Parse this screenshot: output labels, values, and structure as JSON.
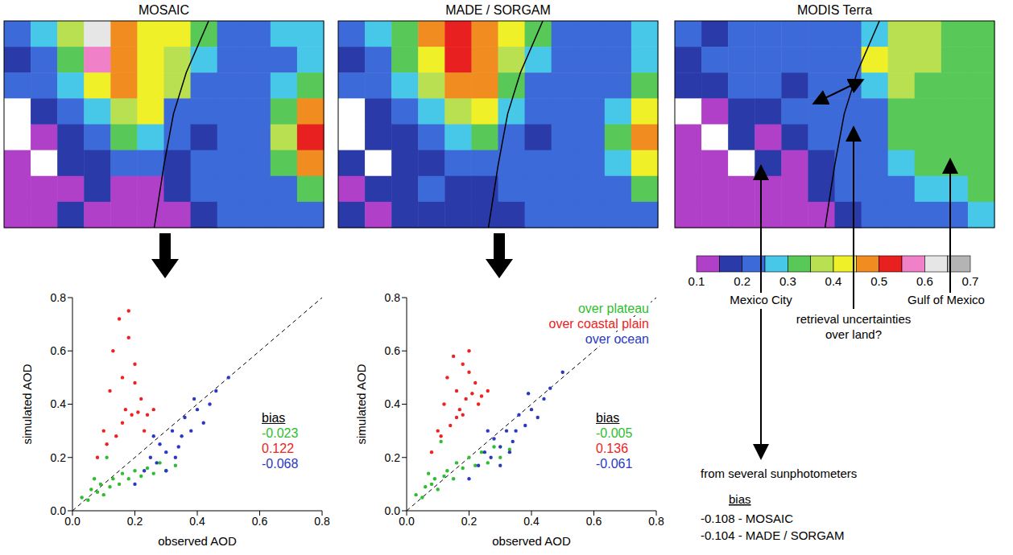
{
  "chart_data": [
    {
      "type": "heatmap",
      "title": "MOSAIC",
      "cells": [
        [
          0.2,
          0.25,
          0.35,
          0.6,
          0.45,
          0.4,
          0.4,
          0.3,
          0.2,
          0.2,
          0.25,
          0.25
        ],
        [
          0.15,
          0.2,
          0.3,
          0.55,
          0.45,
          0.4,
          0.35,
          0.25,
          0.2,
          0.2,
          0.2,
          0.25
        ],
        [
          0.2,
          0.2,
          0.25,
          0.4,
          0.45,
          0.4,
          0.35,
          0.2,
          0.2,
          0.2,
          0.25,
          0.3
        ],
        [
          null,
          0.15,
          0.2,
          0.25,
          0.35,
          0.4,
          0.2,
          0.2,
          0.2,
          0.2,
          0.3,
          0.45
        ],
        [
          null,
          0.1,
          0.15,
          0.2,
          0.3,
          0.25,
          0.2,
          0.15,
          0.2,
          0.2,
          0.35,
          0.5
        ],
        [
          0.1,
          null,
          0.15,
          0.15,
          0.2,
          0.2,
          0.15,
          0.2,
          0.2,
          0.2,
          0.3,
          0.45
        ],
        [
          0.1,
          0.1,
          0.1,
          0.15,
          0.1,
          0.1,
          0.15,
          0.2,
          0.2,
          0.2,
          0.2,
          0.3
        ],
        [
          0.1,
          0.1,
          0.15,
          0.1,
          0.1,
          0.1,
          0.1,
          0.15,
          0.2,
          0.2,
          0.2,
          0.2
        ]
      ]
    },
    {
      "type": "heatmap",
      "title": "MADE / SORGAM",
      "cells": [
        [
          0.2,
          0.25,
          0.3,
          0.45,
          0.5,
          0.45,
          0.4,
          0.3,
          0.2,
          0.2,
          0.2,
          0.25
        ],
        [
          0.15,
          0.2,
          0.3,
          0.4,
          0.5,
          0.45,
          0.35,
          0.25,
          0.2,
          0.2,
          0.2,
          0.25
        ],
        [
          0.2,
          0.2,
          0.25,
          0.35,
          0.45,
          0.45,
          0.3,
          0.2,
          0.2,
          0.2,
          0.2,
          0.3
        ],
        [
          null,
          0.15,
          0.2,
          0.25,
          0.35,
          0.4,
          0.25,
          0.2,
          0.2,
          0.2,
          0.25,
          0.4
        ],
        [
          null,
          0.15,
          0.15,
          0.2,
          0.25,
          0.3,
          0.2,
          0.15,
          0.2,
          0.2,
          0.3,
          0.45
        ],
        [
          0.15,
          null,
          0.15,
          0.15,
          0.2,
          0.2,
          0.2,
          0.2,
          0.2,
          0.2,
          0.25,
          0.4
        ],
        [
          0.1,
          0.15,
          0.15,
          0.2,
          0.15,
          0.15,
          0.2,
          0.2,
          0.2,
          0.2,
          0.2,
          0.3
        ],
        [
          0.15,
          0.1,
          0.15,
          0.15,
          0.15,
          0.15,
          0.15,
          0.2,
          0.2,
          0.2,
          0.2,
          0.2
        ]
      ]
    },
    {
      "type": "heatmap",
      "title": "MODIS Terra",
      "cells": [
        [
          0.2,
          0.15,
          0.2,
          0.2,
          0.2,
          0.2,
          0.2,
          0.25,
          0.35,
          0.35,
          0.3,
          0.3
        ],
        [
          0.15,
          0.2,
          0.2,
          0.2,
          0.2,
          0.2,
          0.2,
          0.4,
          0.35,
          0.35,
          0.3,
          0.3
        ],
        [
          0.15,
          0.15,
          0.2,
          0.2,
          0.15,
          0.2,
          0.2,
          0.25,
          0.35,
          0.3,
          0.3,
          0.3
        ],
        [
          null,
          0.1,
          0.15,
          0.15,
          0.2,
          0.2,
          0.2,
          0.2,
          0.3,
          0.3,
          0.3,
          0.3
        ],
        [
          0.1,
          null,
          0.15,
          0.1,
          0.15,
          0.2,
          0.2,
          0.2,
          0.3,
          0.3,
          0.3,
          0.3
        ],
        [
          0.1,
          0.1,
          null,
          0.15,
          0.1,
          0.15,
          0.2,
          0.2,
          0.25,
          0.3,
          0.3,
          0.3
        ],
        [
          0.1,
          0.1,
          0.1,
          0.1,
          0.1,
          0.15,
          0.2,
          0.2,
          0.2,
          0.25,
          0.25,
          0.3
        ],
        [
          0.1,
          0.1,
          0.1,
          0.1,
          0.1,
          0.1,
          0.15,
          0.2,
          0.2,
          0.2,
          0.2,
          0.25
        ]
      ],
      "colorbar": {
        "range": [
          0.1,
          0.7
        ],
        "ticks": [
          0.1,
          0.2,
          0.3,
          0.4,
          0.5,
          0.6,
          0.7
        ],
        "colors": [
          "#b040c8",
          "#2a3aa8",
          "#3c6ad8",
          "#48c8e8",
          "#58c858",
          "#b8e050",
          "#f0f028",
          "#f08c20",
          "#e82020",
          "#f080c8",
          "#e6e6e6",
          "#b4b4b4"
        ]
      },
      "annotations": [
        "Mexico City",
        "retrieval uncertainties over land?",
        "Gulf of Mexico"
      ],
      "sunphotometer": {
        "text": "from several sunphotometers",
        "bias_label": "bias",
        "lines": [
          "-0.108 - MOSAIC",
          "-0.104 - MADE / SORGAM"
        ]
      }
    },
    {
      "type": "scatter",
      "x_label": "observed AOD",
      "y_label": "simulated AOD",
      "xlim": [
        0,
        0.8
      ],
      "ylim": [
        0,
        0.8
      ],
      "xticks": [
        {
          "value": 0,
          "label": "0.0"
        },
        0.2,
        0.4,
        0.6,
        0.8
      ],
      "yticks": [
        {
          "value": 0,
          "label": "0.0"
        },
        0.2,
        0.4,
        0.6,
        0.8
      ],
      "bias_label": "bias",
      "series": [
        {
          "color": "#2ebd2e",
          "bias": -0.023,
          "x": [
            0.03,
            0.05,
            0.06,
            0.08,
            0.09,
            0.1,
            0.12,
            0.13,
            0.15,
            0.16,
            0.18,
            0.2,
            0.22,
            0.24,
            0.26,
            0.28,
            0.3,
            0.33,
            0.11,
            0.07
          ],
          "y": [
            0.05,
            0.04,
            0.08,
            0.07,
            0.1,
            0.06,
            0.09,
            0.12,
            0.1,
            0.14,
            0.12,
            0.15,
            0.13,
            0.16,
            0.14,
            0.18,
            0.15,
            0.17,
            0.2,
            0.12
          ]
        },
        {
          "color": "#ee2222",
          "bias": 0.122,
          "x": [
            0.08,
            0.1,
            0.12,
            0.13,
            0.15,
            0.16,
            0.17,
            0.18,
            0.19,
            0.2,
            0.21,
            0.22,
            0.14,
            0.11,
            0.24,
            0.26,
            0.18,
            0.16,
            0.2,
            0.23
          ],
          "y": [
            0.2,
            0.3,
            0.45,
            0.6,
            0.72,
            0.5,
            0.38,
            0.65,
            0.36,
            0.55,
            0.37,
            0.42,
            0.28,
            0.25,
            0.36,
            0.38,
            0.75,
            0.33,
            0.48,
            0.3
          ]
        },
        {
          "color": "#2a3ac0",
          "bias": -0.068,
          "x": [
            0.2,
            0.23,
            0.25,
            0.27,
            0.28,
            0.3,
            0.32,
            0.33,
            0.35,
            0.36,
            0.38,
            0.4,
            0.42,
            0.44,
            0.46,
            0.5,
            0.3,
            0.26,
            0.34,
            0.39
          ],
          "y": [
            0.1,
            0.15,
            0.2,
            0.18,
            0.25,
            0.22,
            0.3,
            0.2,
            0.28,
            0.35,
            0.3,
            0.38,
            0.33,
            0.4,
            0.45,
            0.5,
            0.15,
            0.28,
            0.24,
            0.42
          ]
        }
      ]
    },
    {
      "type": "scatter",
      "x_label": "observed AOD",
      "y_label": "simulated AOD",
      "xlim": [
        0,
        0.8
      ],
      "ylim": [
        0,
        0.8
      ],
      "xticks": [
        {
          "value": 0,
          "label": "0.0"
        },
        0.2,
        0.4,
        0.6,
        0.8
      ],
      "yticks": [
        {
          "value": 0,
          "label": "0.0"
        },
        0.2,
        0.4,
        0.6,
        0.8
      ],
      "legend": "top right",
      "bias_label": "bias",
      "series": [
        {
          "name": "over plateau",
          "color": "#2ebd2e",
          "bias": -0.005,
          "x": [
            0.03,
            0.05,
            0.06,
            0.08,
            0.09,
            0.1,
            0.12,
            0.13,
            0.15,
            0.16,
            0.18,
            0.2,
            0.22,
            0.24,
            0.26,
            0.28,
            0.3,
            0.33,
            0.11,
            0.07
          ],
          "y": [
            0.06,
            0.05,
            0.09,
            0.1,
            0.12,
            0.08,
            0.13,
            0.15,
            0.12,
            0.18,
            0.16,
            0.2,
            0.17,
            0.22,
            0.18,
            0.24,
            0.2,
            0.23,
            0.26,
            0.14
          ]
        },
        {
          "name": "over coastal plain",
          "color": "#ee2222",
          "bias": 0.136,
          "x": [
            0.08,
            0.1,
            0.12,
            0.13,
            0.15,
            0.16,
            0.17,
            0.18,
            0.19,
            0.2,
            0.21,
            0.22,
            0.14,
            0.11,
            0.24,
            0.26,
            0.18,
            0.16,
            0.2,
            0.23
          ],
          "y": [
            0.22,
            0.3,
            0.4,
            0.5,
            0.58,
            0.45,
            0.38,
            0.55,
            0.42,
            0.6,
            0.44,
            0.48,
            0.32,
            0.28,
            0.43,
            0.45,
            0.36,
            0.35,
            0.52,
            0.4
          ]
        },
        {
          "name": "over ocean",
          "color": "#2a3ac0",
          "bias": -0.061,
          "x": [
            0.2,
            0.23,
            0.25,
            0.27,
            0.28,
            0.3,
            0.32,
            0.33,
            0.35,
            0.36,
            0.38,
            0.4,
            0.42,
            0.44,
            0.46,
            0.5,
            0.3,
            0.26,
            0.34,
            0.39
          ],
          "y": [
            0.12,
            0.17,
            0.22,
            0.2,
            0.27,
            0.24,
            0.3,
            0.22,
            0.3,
            0.36,
            0.32,
            0.38,
            0.35,
            0.42,
            0.46,
            0.52,
            0.17,
            0.3,
            0.26,
            0.44
          ]
        }
      ]
    }
  ]
}
